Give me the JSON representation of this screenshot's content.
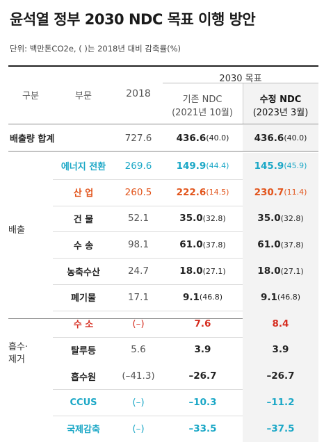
{
  "title": "윤석열 정부 2030 NDC 목표 이행 방안",
  "unit_note": "단위: 백만톤CO2e, ( )는 2018년 대비 감축률(%)",
  "header": {
    "col_group": "구분",
    "col_sector": "부문",
    "col_2018": "2018",
    "target_group": "2030 목표",
    "existing_ndc": "기존 NDC",
    "existing_date": "(2021년 10월)",
    "revised_ndc": "수정 NDC",
    "revised_date": "(2023년 3월)"
  },
  "total": {
    "label": "배출량 합계",
    "v2018": "727.6",
    "existing": "436.6",
    "existing_pct": "(40.0)",
    "revised": "436.6",
    "revised_pct": "(40.0)"
  },
  "groups": {
    "emission": "배출",
    "absorption_line1": "흡수·",
    "absorption_line2": "제거"
  },
  "rows": [
    {
      "sector": "에너지 전환",
      "v2018": "269.6",
      "existing": "149.9",
      "existing_pct": "(44.4)",
      "revised": "145.9",
      "revised_pct": "(45.9)",
      "color": "#1aa7c6"
    },
    {
      "sector": "산 업",
      "v2018": "260.5",
      "existing": "222.6",
      "existing_pct": "(14.5)",
      "revised": "230.7",
      "revised_pct": "(11.4)",
      "color": "#e2541b"
    },
    {
      "sector": "건 물",
      "v2018": "52.1",
      "existing": "35.0",
      "existing_pct": "(32.8)",
      "revised": "35.0",
      "revised_pct": "(32.8)",
      "color": "#222222"
    },
    {
      "sector": "수 송",
      "v2018": "98.1",
      "existing": "61.0",
      "existing_pct": "(37.8)",
      "revised": "61.0",
      "revised_pct": "(37.8)",
      "color": "#222222"
    },
    {
      "sector": "농축수산",
      "v2018": "24.7",
      "existing": "18.0",
      "existing_pct": "(27.1)",
      "revised": "18.0",
      "revised_pct": "(27.1)",
      "color": "#222222"
    },
    {
      "sector": "폐기물",
      "v2018": "17.1",
      "existing": "9.1",
      "existing_pct": "(46.8)",
      "revised": "9.1",
      "revised_pct": "(46.8)",
      "color": "#222222"
    },
    {
      "sector": "수 소",
      "v2018": "(–)",
      "existing": "7.6",
      "existing_pct": "",
      "revised": "8.4",
      "revised_pct": "",
      "color": "#d62d20"
    },
    {
      "sector": "탈루등",
      "v2018": "5.6",
      "existing": "3.9",
      "existing_pct": "",
      "revised": "3.9",
      "revised_pct": "",
      "color": "#222222"
    },
    {
      "sector": "흡수원",
      "v2018": "(–41.3)",
      "existing": "–26.7",
      "existing_pct": "",
      "revised": "–26.7",
      "revised_pct": "",
      "color": "#222222"
    },
    {
      "sector": "CCUS",
      "v2018": "(–)",
      "existing": "–10.3",
      "existing_pct": "",
      "revised": "–11.2",
      "revised_pct": "",
      "color": "#1aa7c6"
    },
    {
      "sector": "국제감축",
      "v2018": "(–)",
      "existing": "–33.5",
      "existing_pct": "",
      "revised": "–37.5",
      "revised_pct": "",
      "color": "#1aa7c6"
    }
  ]
}
